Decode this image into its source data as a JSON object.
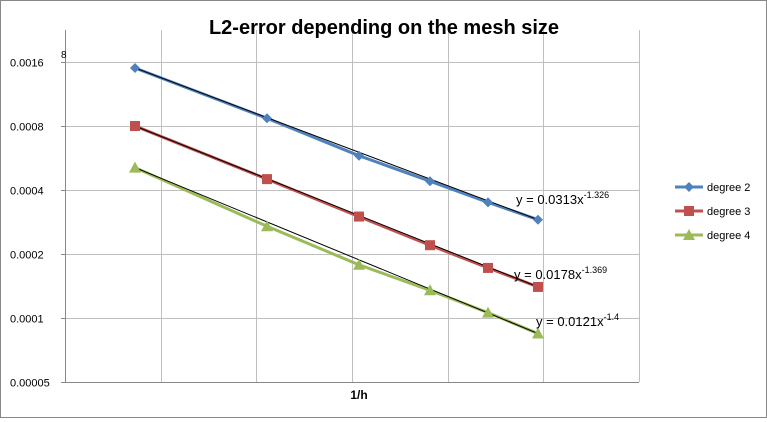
{
  "chart_data": {
    "type": "line",
    "title": "L2-error depending on the mesh size",
    "xlabel": "1/h",
    "ylabel": "",
    "y_scale": "log2",
    "y_ticks": [
      "0.00005",
      "0.0001",
      "0.0002",
      "0.0004",
      "0.0008",
      "0.0016"
    ],
    "y_axis_top_label": "8",
    "x_tick_labels_shown": false,
    "x_gridlines": 6,
    "grid": true,
    "legend_position": "right",
    "series": [
      {
        "name": "degree 2",
        "color": "#4f81bd",
        "marker": "diamond",
        "values": [
          0.0015,
          0.00087,
          0.00058,
          0.00044,
          0.00035,
          0.00029
        ],
        "trendline": "y = 0.0313x",
        "trendline_exponent": "-1.326"
      },
      {
        "name": "degree 3",
        "color": "#c0504d",
        "marker": "square",
        "values": [
          0.0008,
          0.00045,
          0.0003,
          0.00022,
          0.000172,
          0.00014
        ],
        "trendline": "y = 0.0178x",
        "trendline_exponent": "-1.369"
      },
      {
        "name": "degree 4",
        "color": "#9bbb59",
        "marker": "triangle",
        "values": [
          0.00051,
          0.00027,
          0.000178,
          0.000135,
          0.000106,
          8.45e-05
        ],
        "trendline": "y = 0.0121x",
        "trendline_exponent": "-1.4"
      }
    ]
  }
}
